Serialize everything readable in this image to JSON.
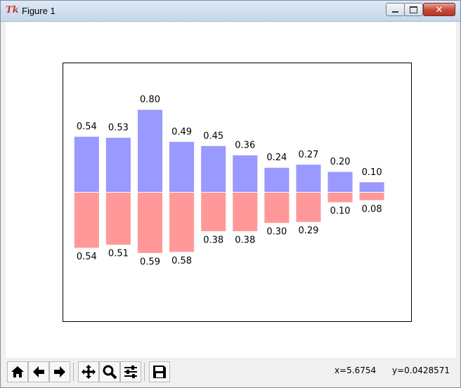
{
  "window": {
    "title": "Figure 1"
  },
  "toolbar": {
    "buttons": [
      {
        "name": "home-icon"
      },
      {
        "name": "back-icon"
      },
      {
        "name": "forward-icon"
      },
      {
        "name": "pan-icon"
      },
      {
        "name": "zoom-icon"
      },
      {
        "name": "subplots-icon"
      },
      {
        "name": "save-icon"
      }
    ],
    "x_readout": "x=5.6754",
    "y_readout": "y=0.0428571"
  },
  "chart_data": {
    "type": "bar",
    "x": [
      0,
      1,
      2,
      3,
      4,
      5,
      6,
      7,
      8,
      9
    ],
    "ylim": [
      -1.25,
      1.25
    ],
    "xlim": [
      -0.75,
      10.25
    ],
    "axes_visible": false,
    "grid": false,
    "series": [
      {
        "values": [
          0.54,
          0.53,
          0.8,
          0.49,
          0.45,
          0.36,
          0.24,
          0.27,
          0.2,
          0.1
        ],
        "labels": [
          "0.54",
          "0.53",
          "0.80",
          "0.49",
          "0.45",
          "0.36",
          "0.24",
          "0.27",
          "0.20",
          "0.10"
        ],
        "color": "#9999ff",
        "edge": "#ffffff"
      },
      {
        "values": [
          -0.54,
          -0.51,
          -0.59,
          -0.58,
          -0.38,
          -0.38,
          -0.3,
          -0.29,
          -0.1,
          -0.08
        ],
        "labels": [
          "0.54",
          "0.51",
          "0.59",
          "0.58",
          "0.38",
          "0.38",
          "0.30",
          "0.29",
          "0.10",
          "0.08"
        ],
        "color": "#ff9999",
        "edge": "#ffffff"
      }
    ]
  }
}
